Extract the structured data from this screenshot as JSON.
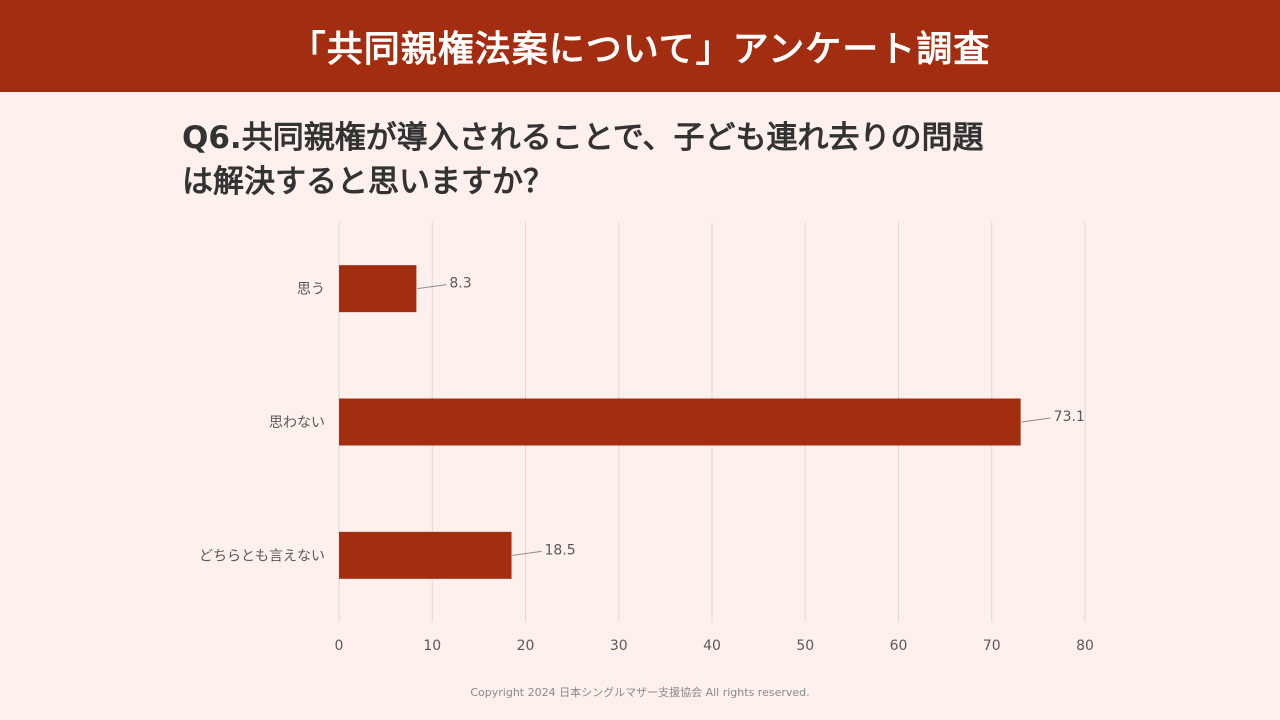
{
  "header": {
    "title": "「共同親権法案について」アンケート調査"
  },
  "question": {
    "line1": "Q6.共同親権が導入されることで、子ども連れ去りの問題",
    "line2": "は解決すると思いますか？"
  },
  "footer": {
    "copyright": "Copyright 2024 日本シングルマザー支援協会 All rights reserved."
  },
  "colors": {
    "accent": "#a32d10",
    "background": "#fdf0ed",
    "grid": "#d9d9d9",
    "text": "#595959"
  },
  "chart_data": {
    "type": "bar",
    "orientation": "horizontal",
    "categories": [
      "思う",
      "思わない",
      "どちらとも言えない"
    ],
    "values": [
      8.3,
      73.1,
      18.5
    ],
    "value_labels": [
      "8.3",
      "73.1",
      "18.5"
    ],
    "xlim": [
      0,
      80
    ],
    "xticks": [
      0,
      10,
      20,
      30,
      40,
      50,
      60,
      70,
      80
    ],
    "grid": true,
    "title": "",
    "xlabel": "",
    "ylabel": ""
  }
}
